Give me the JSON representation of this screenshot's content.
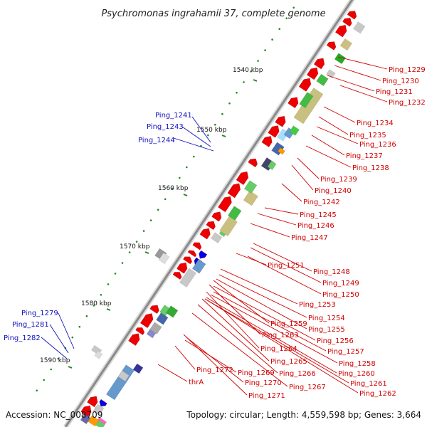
{
  "title": "Psychromonas ingrahamii 37, complete genome",
  "accession": "Accession: NC_008709",
  "topology": "Topology: circular; Length: 4,559,598 bp; Genes: 3,664",
  "colors": {
    "forward_label": "#d00000",
    "reverse_label": "#1010c0",
    "backbone": "#888888",
    "forward_arrow": "#ee0000",
    "reverse_arrow": "#0000ee",
    "tick": "#228822"
  },
  "scale_labels": [
    "1540 kbp",
    "1550 kbp",
    "1560 kbp",
    "1570 kbp",
    "1580 kbp",
    "1590 kbp"
  ],
  "forward_genes": [
    "Ping_1229",
    "Ping_1230",
    "Ping_1231",
    "Ping_1232",
    "Ping_1234",
    "Ping_1235",
    "Ping_1236",
    "Ping_1237",
    "Ping_1238",
    "Ping_1239",
    "Ping_1240",
    "Ping_1242",
    "Ping_1245",
    "Ping_1246",
    "Ping_1247",
    "Ping_1251",
    "Ping_1248",
    "Ping_1249",
    "Ping_1250",
    "Ping_1253",
    "Ping_1254",
    "Ping_1259",
    "Ping_1255",
    "Ping_1263",
    "Ping_1256",
    "Ping_1264",
    "Ping_1257",
    "Ping_1258",
    "Ping_1265",
    "Ping_1266",
    "Ping_1260",
    "Ping_1272",
    "Ping_1269",
    "Ping_1261",
    "Ping_1270",
    "Ping_1267",
    "Ping_1262",
    "thrA",
    "Ping_1271"
  ],
  "reverse_genes": [
    "Ping_1241",
    "Ping_1243",
    "Ping_1244",
    "Ping_1279",
    "Ping_1281",
    "Ping_1282"
  ]
}
